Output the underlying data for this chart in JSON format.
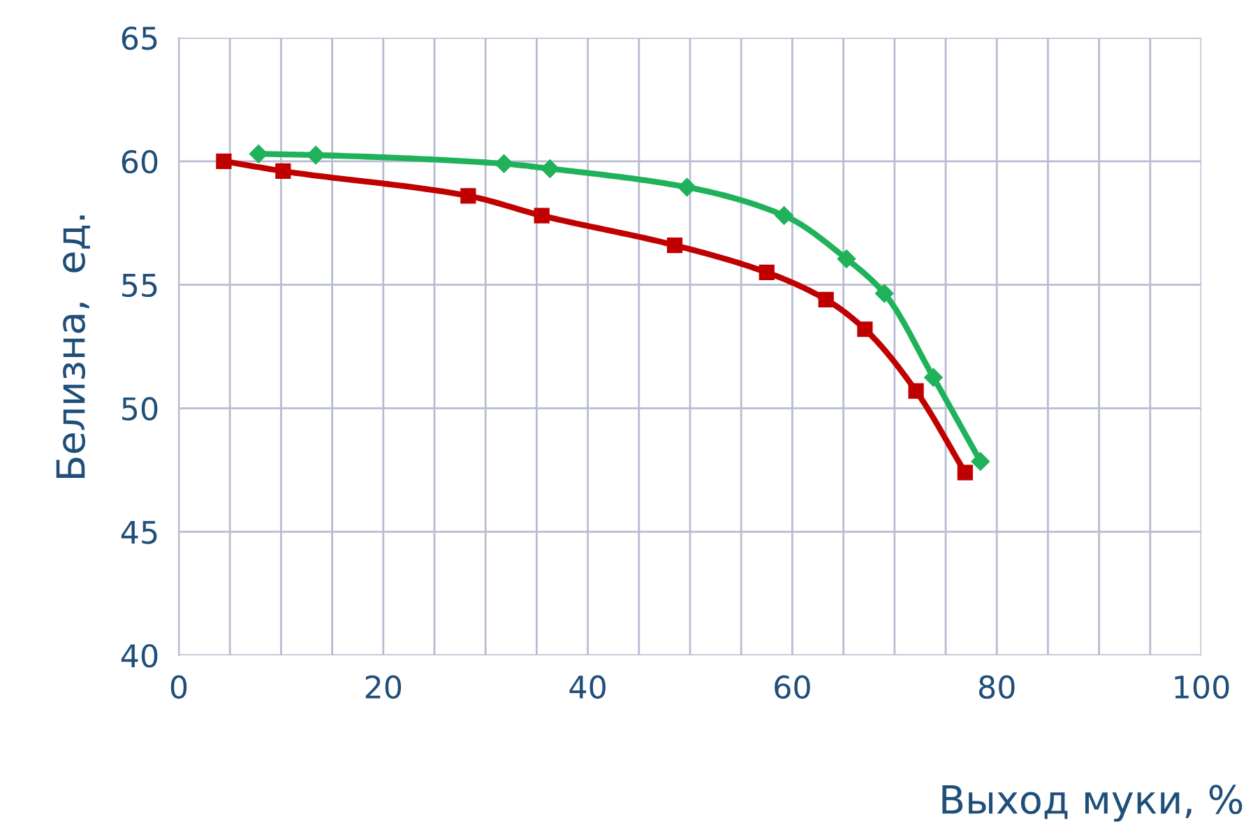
{
  "chart_data": {
    "type": "line",
    "xlabel": "Выход муки, %",
    "ylabel": "Белизна,  ед.",
    "series": [
      {
        "color": "#1fb25a",
        "marker": "diamond",
        "x": [
          7.8,
          13.4,
          31.8,
          36.3,
          49.7,
          59.2,
          65.3,
          69.0,
          73.8,
          78.4
        ],
        "values": [
          60.3,
          60.25,
          59.9,
          59.7,
          58.95,
          57.8,
          56.05,
          54.65,
          51.25,
          47.85
        ]
      },
      {
        "color": "#c00000",
        "marker": "square",
        "x": [
          4.4,
          10.2,
          28.3,
          35.5,
          48.5,
          57.5,
          63.3,
          67.1,
          72.1,
          76.9
        ],
        "values": [
          60.0,
          59.6,
          58.6,
          57.8,
          56.6,
          55.5,
          54.4,
          53.2,
          50.7,
          47.4
        ]
      }
    ],
    "xlim": [
      0,
      100
    ],
    "xticks": [
      0,
      {
        "value": 5,
        "label": null
      },
      {
        "value": 10,
        "label": null
      },
      {
        "value": 15,
        "label": null
      },
      20,
      {
        "value": 25,
        "label": null
      },
      {
        "value": 30,
        "label": null
      },
      {
        "value": 35,
        "label": null
      },
      40,
      {
        "value": 45,
        "label": null
      },
      {
        "value": 50,
        "label": null
      },
      {
        "value": 55,
        "label": null
      },
      60,
      {
        "value": 65,
        "label": null
      },
      {
        "value": 70,
        "label": null
      },
      {
        "value": 75,
        "label": null
      },
      80,
      {
        "value": 85,
        "label": null
      },
      {
        "value": 90,
        "label": null
      },
      {
        "value": 95,
        "label": null
      },
      100
    ],
    "ylim": [
      40,
      65
    ],
    "yticks": [
      40,
      45,
      50,
      55,
      60,
      65
    ],
    "grid": true,
    "line_style": "solid"
  }
}
